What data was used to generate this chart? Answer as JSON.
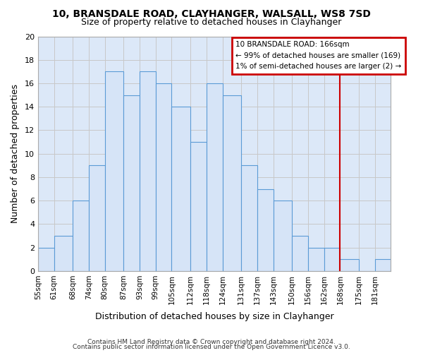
{
  "title": "10, BRANSDALE ROAD, CLAYHANGER, WALSALL, WS8 7SD",
  "subtitle": "Size of property relative to detached houses in Clayhanger",
  "xlabel": "Distribution of detached houses by size in Clayhanger",
  "ylabel": "Number of detached properties",
  "bar_labels": [
    "55sqm",
    "61sqm",
    "68sqm",
    "74sqm",
    "80sqm",
    "87sqm",
    "93sqm",
    "99sqm",
    "105sqm",
    "112sqm",
    "118sqm",
    "124sqm",
    "131sqm",
    "137sqm",
    "143sqm",
    "150sqm",
    "156sqm",
    "162sqm",
    "168sqm",
    "175sqm",
    "181sqm"
  ],
  "bar_values": [
    2,
    3,
    6,
    9,
    17,
    15,
    17,
    16,
    14,
    11,
    16,
    15,
    9,
    7,
    6,
    3,
    2,
    2,
    1,
    0,
    1
  ],
  "bar_color": "#d6e4f7",
  "bar_edge_color": "#5b9bd5",
  "vline_x_index": 18,
  "vline_color": "#cc0000",
  "ylim": [
    0,
    20
  ],
  "yticks": [
    0,
    2,
    4,
    6,
    8,
    10,
    12,
    14,
    16,
    18,
    20
  ],
  "grid_color": "#c8c8c8",
  "plot_bg_color": "#dce8f8",
  "fig_bg_color": "#ffffff",
  "annotation_box_text": "10 BRANSDALE ROAD: 166sqm\n← 99% of detached houses are smaller (169)\n1% of semi-detached houses are larger (2) →",
  "annotation_box_color": "#ffffff",
  "annotation_box_edge_color": "#cc0000",
  "footer_line1": "Contains HM Land Registry data © Crown copyright and database right 2024.",
  "footer_line2": "Contains public sector information licensed under the Open Government Licence v3.0.",
  "title_fontsize": 10,
  "subtitle_fontsize": 9,
  "ylabel_fontsize": 9,
  "xlabel_fontsize": 9
}
